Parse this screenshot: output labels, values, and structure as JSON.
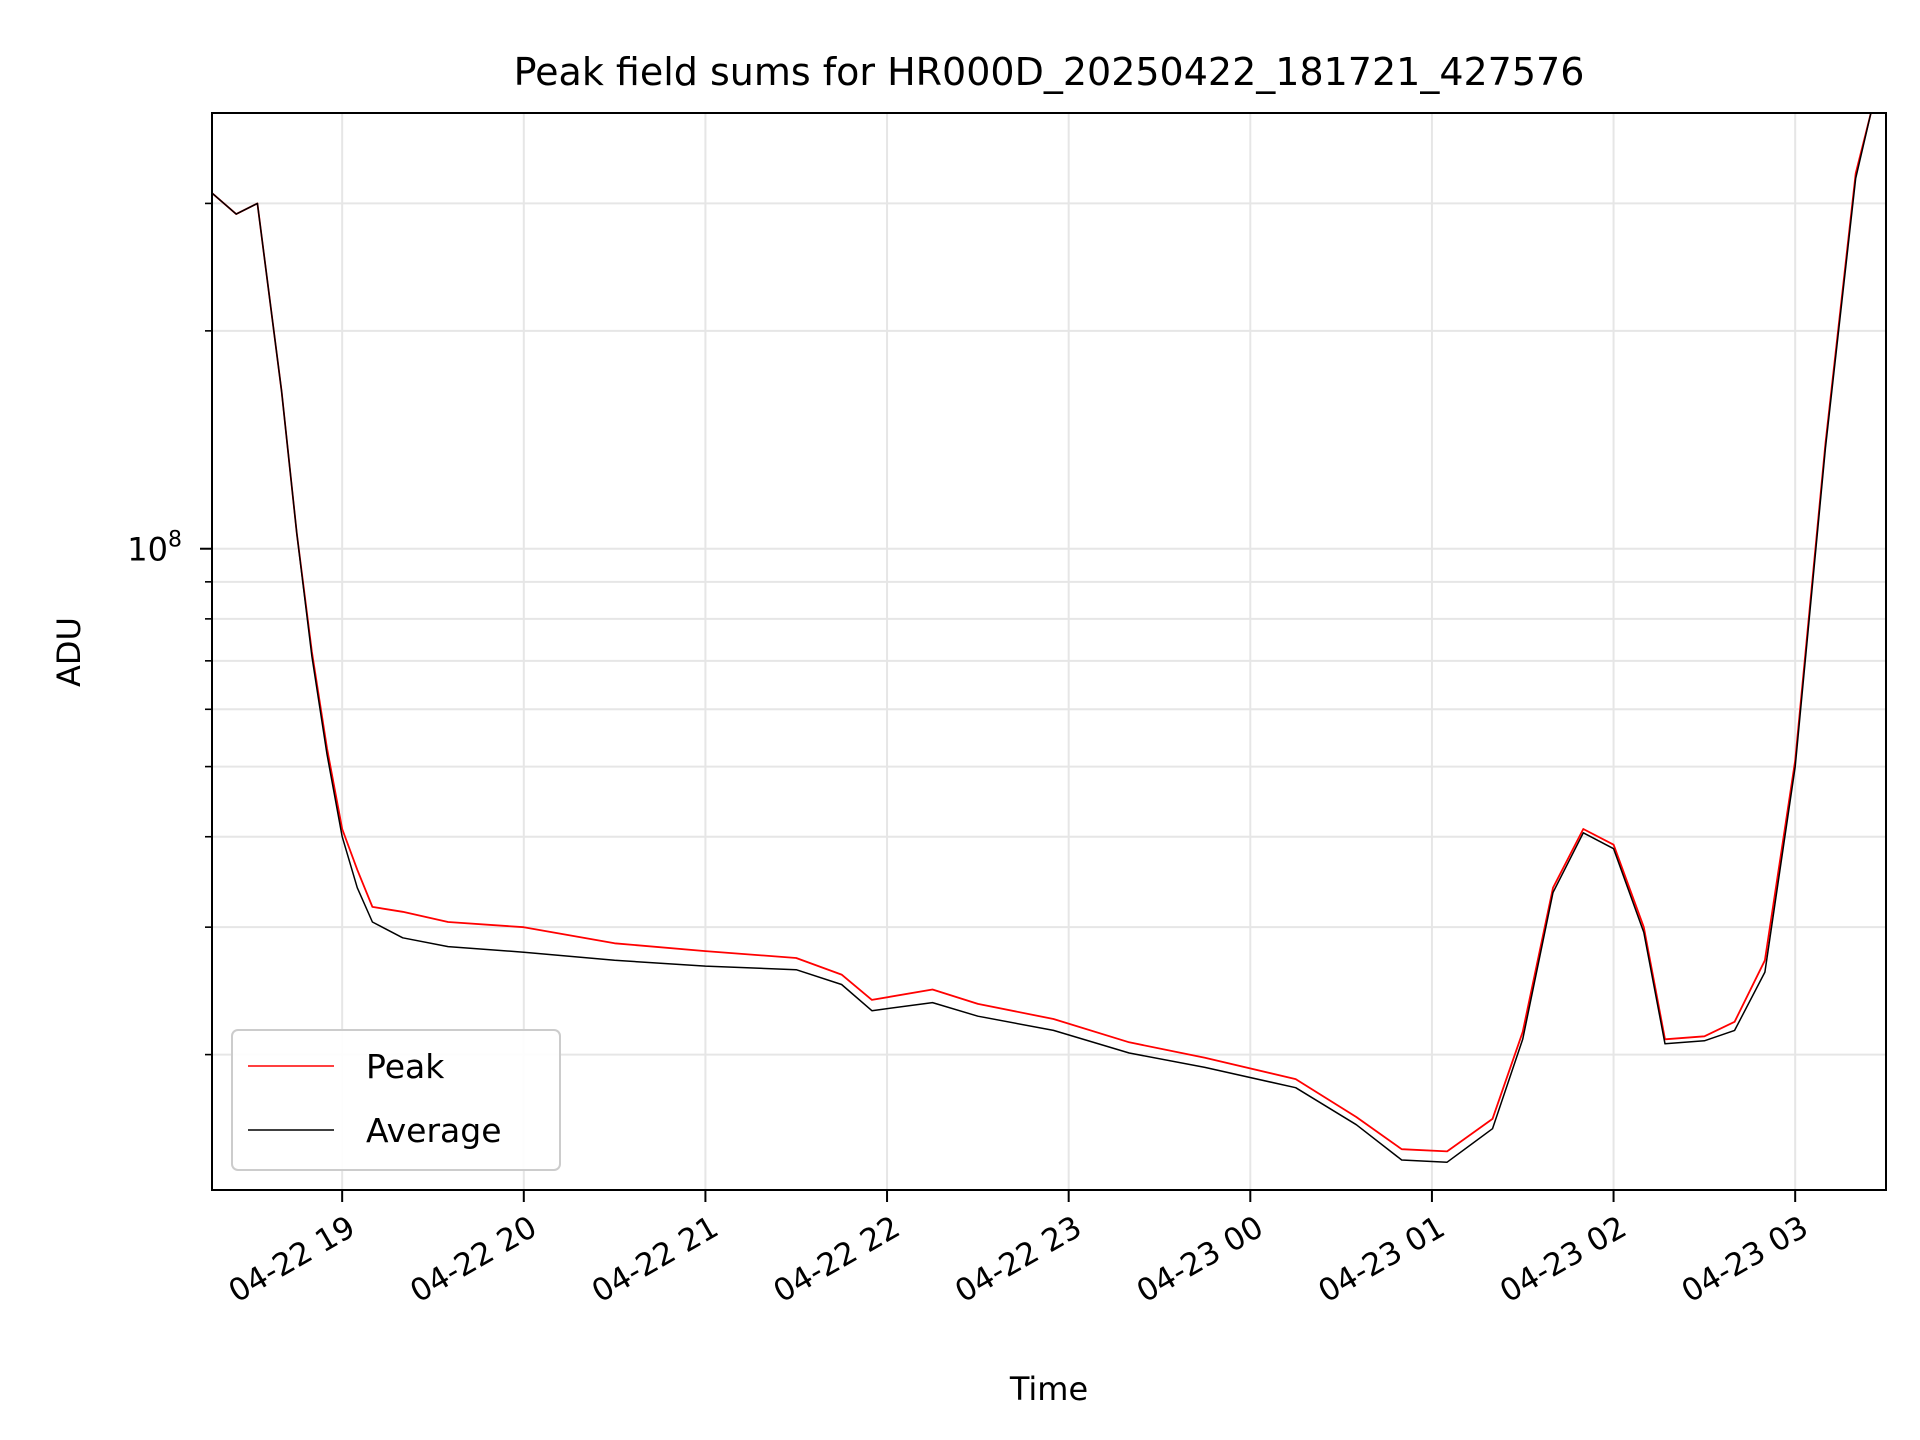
{
  "chart_data": {
    "type": "line",
    "title": "Peak field sums for HR000D_20250422_181721_427576",
    "xlabel": "Time",
    "ylabel": "ADU",
    "y_scale": "log",
    "ylim": [
      13000000,
      400000000
    ],
    "xlim": [
      "2025-04-22 18:17",
      "2025-04-23 03:30"
    ],
    "x_ticks": [
      "04-22 19",
      "04-22 20",
      "04-22 21",
      "04-22 22",
      "04-22 23",
      "04-23 00",
      "04-23 01",
      "04-23 02",
      "04-23 03"
    ],
    "y_tick_labels": [
      "10^8"
    ],
    "y_major_ticks": [
      100000000
    ],
    "y_minor_ticks": [
      20000000,
      30000000,
      40000000,
      50000000,
      60000000,
      70000000,
      80000000,
      90000000,
      200000000,
      300000000
    ],
    "grid": true,
    "legend": {
      "position": "lower-left"
    },
    "series": [
      {
        "name": "Peak",
        "color": "#ff0000",
        "x": [
          "2025-04-22 18:17",
          "2025-04-22 18:25",
          "2025-04-22 18:32",
          "2025-04-22 18:40",
          "2025-04-22 18:45",
          "2025-04-22 18:50",
          "2025-04-22 18:55",
          "2025-04-22 19:00",
          "2025-04-22 19:05",
          "2025-04-22 19:10",
          "2025-04-22 19:20",
          "2025-04-22 19:35",
          "2025-04-22 20:00",
          "2025-04-22 20:30",
          "2025-04-22 21:00",
          "2025-04-22 21:30",
          "2025-04-22 21:45",
          "2025-04-22 21:55",
          "2025-04-22 22:15",
          "2025-04-22 22:30",
          "2025-04-22 22:55",
          "2025-04-22 23:20",
          "2025-04-22 23:45",
          "2025-04-23 00:15",
          "2025-04-23 00:35",
          "2025-04-23 00:50",
          "2025-04-23 01:05",
          "2025-04-23 01:20",
          "2025-04-23 01:30",
          "2025-04-23 01:40",
          "2025-04-23 01:50",
          "2025-04-23 02:00",
          "2025-04-23 02:10",
          "2025-04-23 02:17",
          "2025-04-23 02:30",
          "2025-04-23 02:40",
          "2025-04-23 02:50",
          "2025-04-23 03:00",
          "2025-04-23 03:10",
          "2025-04-23 03:20",
          "2025-04-23 03:25"
        ],
        "y": [
          310000000,
          290000000,
          300000000,
          165000000,
          105000000,
          72000000,
          53000000,
          41000000,
          36000000,
          32000000,
          31500000,
          30500000,
          30000000,
          28500000,
          27800000,
          27200000,
          25800000,
          23800000,
          24600000,
          23500000,
          22400000,
          20800000,
          19800000,
          18500000,
          16400000,
          14800000,
          14700000,
          16300000,
          21500000,
          34000000,
          41000000,
          39000000,
          30000000,
          21000000,
          21200000,
          22200000,
          27000000,
          51000000,
          140000000,
          330000000,
          400000000
        ]
      },
      {
        "name": "Average",
        "color": "#000000",
        "x": [
          "2025-04-22 18:17",
          "2025-04-22 18:25",
          "2025-04-22 18:32",
          "2025-04-22 18:40",
          "2025-04-22 18:45",
          "2025-04-22 18:50",
          "2025-04-22 18:55",
          "2025-04-22 19:00",
          "2025-04-22 19:05",
          "2025-04-22 19:10",
          "2025-04-22 19:20",
          "2025-04-22 19:35",
          "2025-04-22 20:00",
          "2025-04-22 20:30",
          "2025-04-22 21:00",
          "2025-04-22 21:30",
          "2025-04-22 21:45",
          "2025-04-22 21:55",
          "2025-04-22 22:15",
          "2025-04-22 22:30",
          "2025-04-22 22:55",
          "2025-04-22 23:20",
          "2025-04-22 23:45",
          "2025-04-23 00:15",
          "2025-04-23 00:35",
          "2025-04-23 00:50",
          "2025-04-23 01:05",
          "2025-04-23 01:20",
          "2025-04-23 01:30",
          "2025-04-23 01:40",
          "2025-04-23 01:50",
          "2025-04-23 02:00",
          "2025-04-23 02:10",
          "2025-04-23 02:17",
          "2025-04-23 02:30",
          "2025-04-23 02:40",
          "2025-04-23 02:50",
          "2025-04-23 03:00",
          "2025-04-23 03:10",
          "2025-04-23 03:20",
          "2025-04-23 03:25"
        ],
        "y": [
          310000000,
          290000000,
          300000000,
          165000000,
          105000000,
          71000000,
          52000000,
          40000000,
          34000000,
          30500000,
          29000000,
          28200000,
          27700000,
          27000000,
          26500000,
          26200000,
          25000000,
          23000000,
          23600000,
          22600000,
          21600000,
          20100000,
          19200000,
          18000000,
          16000000,
          14300000,
          14200000,
          15800000,
          21000000,
          33500000,
          40500000,
          38500000,
          29500000,
          20700000,
          20900000,
          21600000,
          26000000,
          50000000,
          138000000,
          325000000,
          400000000
        ]
      }
    ]
  }
}
